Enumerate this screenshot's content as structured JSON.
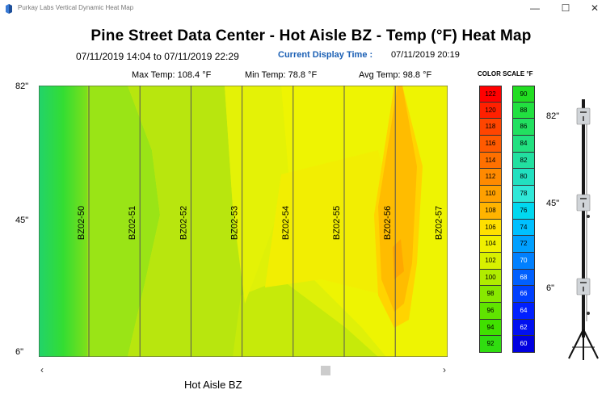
{
  "window": {
    "title": "Purkay Labs Vertical Dynamic Heat Map",
    "minimize_glyph": "—",
    "maximize_glyph": "☐",
    "close_glyph": "✕"
  },
  "header": {
    "title": "Pine Street Data Center - Hot Aisle BZ - Temp  (°F)  Heat Map",
    "date_range": "07/11/2019 14:04 to 07/11/2019 22:29",
    "current_display_label": "Current Display Time :",
    "current_display_value": "07/11/2019 20:19"
  },
  "stats": {
    "max": "Max Temp: 108.4 °F",
    "min": "Min Temp: 78.8 °F",
    "avg": "Avg Temp: 98.8 °F"
  },
  "y_axis": {
    "top": "82\"",
    "mid": "45\"",
    "bottom": "6\""
  },
  "racks": [
    "BZ02-50",
    "BZ02-51",
    "BZ02-52",
    "BZ02-53",
    "BZ02-54",
    "BZ02-55",
    "BZ02-56",
    "BZ02-57"
  ],
  "x_label": "Hot Aisle BZ",
  "scrollbar": {
    "left_arrow": "‹",
    "right_arrow": "›",
    "position": 0.72
  },
  "color_scale": {
    "title": "COLOR SCALE °F",
    "high": [
      {
        "v": "122",
        "c": "#ff0000",
        "t": "#000"
      },
      {
        "v": "120",
        "c": "#ff2000",
        "t": "#000"
      },
      {
        "v": "118",
        "c": "#ff4500",
        "t": "#000"
      },
      {
        "v": "116",
        "c": "#ff5a00",
        "t": "#000"
      },
      {
        "v": "114",
        "c": "#ff7000",
        "t": "#000"
      },
      {
        "v": "112",
        "c": "#ff8a00",
        "t": "#000"
      },
      {
        "v": "110",
        "c": "#ffa000",
        "t": "#000"
      },
      {
        "v": "108",
        "c": "#ffb400",
        "t": "#000"
      },
      {
        "v": "106",
        "c": "#ffe000",
        "t": "#000"
      },
      {
        "v": "104",
        "c": "#f0f000",
        "t": "#000"
      },
      {
        "v": "102",
        "c": "#d8f000",
        "t": "#000"
      },
      {
        "v": "100",
        "c": "#b0ec00",
        "t": "#000"
      },
      {
        "v": "98",
        "c": "#88e800",
        "t": "#000"
      },
      {
        "v": "96",
        "c": "#60e400",
        "t": "#000"
      },
      {
        "v": "94",
        "c": "#40e000",
        "t": "#000"
      },
      {
        "v": "92",
        "c": "#30dd10",
        "t": "#000"
      }
    ],
    "low": [
      {
        "v": "90",
        "c": "#22dd22",
        "t": "#000"
      },
      {
        "v": "88",
        "c": "#22e040",
        "t": "#000"
      },
      {
        "v": "86",
        "c": "#22e060",
        "t": "#000"
      },
      {
        "v": "84",
        "c": "#22e080",
        "t": "#000"
      },
      {
        "v": "82",
        "c": "#22e0a0",
        "t": "#000"
      },
      {
        "v": "80",
        "c": "#22e0c0",
        "t": "#000"
      },
      {
        "v": "78",
        "c": "#30e8d8",
        "t": "#000"
      },
      {
        "v": "76",
        "c": "#00d8f0",
        "t": "#000"
      },
      {
        "v": "74",
        "c": "#00c0ff",
        "t": "#000"
      },
      {
        "v": "72",
        "c": "#00a0ff",
        "t": "#000"
      },
      {
        "v": "70",
        "c": "#0080ff",
        "t": "#fff"
      },
      {
        "v": "68",
        "c": "#0060ff",
        "t": "#fff"
      },
      {
        "v": "66",
        "c": "#0040ff",
        "t": "#fff"
      },
      {
        "v": "64",
        "c": "#0020ff",
        "t": "#fff"
      },
      {
        "v": "62",
        "c": "#0010f0",
        "t": "#fff"
      },
      {
        "v": "60",
        "c": "#0000e0",
        "t": "#fff"
      }
    ]
  },
  "sensor_pole": {
    "top": "82\"",
    "mid": "45\"",
    "bottom": "6\""
  }
}
